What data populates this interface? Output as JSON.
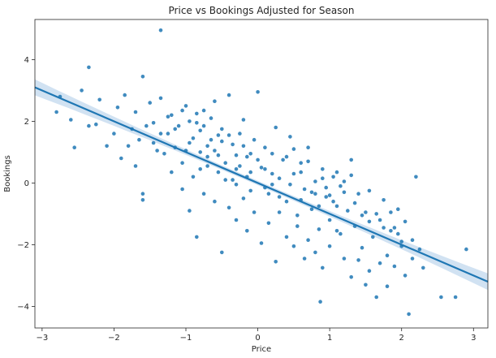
{
  "chart_data": {
    "type": "scatter",
    "title": "Price vs Bookings Adjusted for Season",
    "xlabel": "Price",
    "ylabel": "Bookings",
    "xlim": [
      -3.1,
      3.2
    ],
    "ylim": [
      -4.7,
      5.3
    ],
    "xticks": [
      -3,
      -2,
      -1,
      0,
      1,
      2,
      3
    ],
    "yticks": [
      -4,
      -2,
      0,
      2,
      4
    ],
    "grid": false,
    "colors": {
      "points": "#1f77b4",
      "line": "#1f77b4",
      "band": "#c6dbef"
    },
    "regression": {
      "slope": -1.0,
      "intercept": 0.0,
      "ci_at_edges": 0.27,
      "ci_at_center": 0.07,
      "x_center": 0.0
    },
    "points": [
      [
        -1.35,
        4.95
      ],
      [
        -2.35,
        3.75
      ],
      [
        -1.6,
        3.45
      ],
      [
        -2.45,
        3.0
      ],
      [
        -2.75,
        2.8
      ],
      [
        -2.8,
        2.3
      ],
      [
        -2.6,
        2.05
      ],
      [
        -2.55,
        1.15
      ],
      [
        -2.25,
        1.9
      ],
      [
        -2.2,
        2.7
      ],
      [
        -2.1,
        1.2
      ],
      [
        -2.0,
        1.6
      ],
      [
        -1.95,
        2.45
      ],
      [
        -1.85,
        2.85
      ],
      [
        -1.8,
        1.2
      ],
      [
        -1.75,
        1.75
      ],
      [
        -1.7,
        2.3
      ],
      [
        -1.65,
        1.4
      ],
      [
        -1.6,
        -0.35
      ],
      [
        -1.55,
        1.85
      ],
      [
        -1.5,
        2.6
      ],
      [
        -1.45,
        1.3
      ],
      [
        -1.4,
        1.05
      ],
      [
        -1.35,
        2.75
      ],
      [
        -1.3,
        0.95
      ],
      [
        -1.25,
        1.6
      ],
      [
        -1.2,
        2.2
      ],
      [
        -1.15,
        1.15
      ],
      [
        -1.1,
        1.85
      ],
      [
        -1.05,
        0.65
      ],
      [
        -1.0,
        2.5
      ],
      [
        -0.95,
        1.3
      ],
      [
        -0.9,
        0.2
      ],
      [
        -0.85,
        1.95
      ],
      [
        -0.8,
        1.0
      ],
      [
        -0.75,
        2.35
      ],
      [
        -0.7,
        0.55
      ],
      [
        -0.65,
        1.4
      ],
      [
        -0.6,
        2.65
      ],
      [
        -0.55,
        0.9
      ],
      [
        -0.5,
        1.75
      ],
      [
        -0.45,
        0.1
      ],
      [
        -0.4,
        2.85
      ],
      [
        -0.35,
        1.25
      ],
      [
        -0.3,
        0.45
      ],
      [
        -0.25,
        1.6
      ],
      [
        -0.2,
        2.05
      ],
      [
        -0.15,
        0.85
      ],
      [
        -0.1,
        -0.25
      ],
      [
        -0.05,
        1.4
      ],
      [
        0.0,
        2.95
      ],
      [
        0.05,
        0.5
      ],
      [
        0.1,
        1.15
      ],
      [
        0.15,
        -0.35
      ],
      [
        0.2,
        0.95
      ],
      [
        0.25,
        1.8
      ],
      [
        0.3,
        0.15
      ],
      [
        0.35,
        0.75
      ],
      [
        0.4,
        -0.6
      ],
      [
        0.45,
        1.5
      ],
      [
        0.5,
        0.3
      ],
      [
        0.55,
        -1.05
      ],
      [
        0.6,
        0.65
      ],
      [
        0.65,
        -0.2
      ],
      [
        0.7,
        1.15
      ],
      [
        0.75,
        -0.85
      ],
      [
        0.8,
        0.05
      ],
      [
        0.85,
        -1.5
      ],
      [
        0.9,
        0.45
      ],
      [
        0.95,
        -0.45
      ],
      [
        1.0,
        -1.2
      ],
      [
        1.05,
        0.2
      ],
      [
        1.1,
        -0.75
      ],
      [
        1.15,
        -1.65
      ],
      [
        1.2,
        0.05
      ],
      [
        1.25,
        -0.9
      ],
      [
        1.3,
        0.75
      ],
      [
        1.35,
        -1.4
      ],
      [
        1.4,
        -0.35
      ],
      [
        1.45,
        -2.1
      ],
      [
        1.5,
        -0.95
      ],
      [
        1.55,
        -0.25
      ],
      [
        1.6,
        -1.75
      ],
      [
        1.65,
        -3.7
      ],
      [
        1.7,
        -1.2
      ],
      [
        1.75,
        -0.55
      ],
      [
        1.8,
        -2.35
      ],
      [
        1.85,
        -1.55
      ],
      [
        1.9,
        -2.7
      ],
      [
        1.95,
        -0.85
      ],
      [
        2.0,
        -1.9
      ],
      [
        2.05,
        -3.0
      ],
      [
        2.1,
        -4.25
      ],
      [
        2.15,
        -2.45
      ],
      [
        2.2,
        0.2
      ],
      [
        2.3,
        -2.75
      ],
      [
        2.55,
        -3.7
      ],
      [
        2.75,
        -3.7
      ],
      [
        2.9,
        -2.15
      ],
      [
        0.87,
        -3.85
      ],
      [
        -1.6,
        -0.55
      ],
      [
        -1.7,
        0.55
      ],
      [
        -2.35,
        1.85
      ],
      [
        -1.9,
        0.8
      ],
      [
        -1.2,
        0.35
      ],
      [
        -1.05,
        -0.2
      ],
      [
        -0.95,
        -0.9
      ],
      [
        -0.85,
        -1.75
      ],
      [
        -0.75,
        -0.35
      ],
      [
        -0.6,
        -0.6
      ],
      [
        -0.5,
        -2.25
      ],
      [
        -0.4,
        -0.8
      ],
      [
        -0.3,
        -1.2
      ],
      [
        -0.2,
        -0.5
      ],
      [
        -0.15,
        -1.55
      ],
      [
        -0.05,
        -0.95
      ],
      [
        0.05,
        -1.95
      ],
      [
        0.15,
        -1.3
      ],
      [
        0.25,
        -2.55
      ],
      [
        0.3,
        -0.95
      ],
      [
        0.4,
        -1.75
      ],
      [
        0.5,
        -2.05
      ],
      [
        0.55,
        -1.4
      ],
      [
        0.65,
        -2.45
      ],
      [
        0.7,
        -1.85
      ],
      [
        0.8,
        -2.25
      ],
      [
        0.9,
        -2.75
      ],
      [
        1.0,
        -2.05
      ],
      [
        1.1,
        -1.55
      ],
      [
        1.2,
        -2.45
      ],
      [
        1.3,
        -3.05
      ],
      [
        1.4,
        -2.5
      ],
      [
        1.5,
        -3.3
      ],
      [
        1.55,
        -2.85
      ],
      [
        1.7,
        -2.6
      ],
      [
        1.8,
        -3.35
      ],
      [
        1.9,
        -1.45
      ],
      [
        2.0,
        -2.05
      ],
      [
        -0.3,
        -0.05
      ],
      [
        -0.1,
        0.35
      ],
      [
        0.1,
        -0.15
      ],
      [
        0.2,
        0.3
      ],
      [
        0.3,
        -0.45
      ],
      [
        0.45,
        -0.05
      ],
      [
        0.6,
        -0.55
      ],
      [
        0.75,
        -0.3
      ],
      [
        0.85,
        -0.75
      ],
      [
        0.95,
        -0.15
      ],
      [
        1.05,
        -0.6
      ],
      [
        1.15,
        -0.1
      ],
      [
        -0.8,
        0.45
      ],
      [
        -0.7,
        0.85
      ],
      [
        -0.55,
        0.35
      ],
      [
        -0.45,
        0.65
      ],
      [
        -0.35,
        0.1
      ],
      [
        -0.25,
        0.55
      ],
      [
        -0.15,
        0.2
      ],
      [
        0.0,
        0.75
      ],
      [
        0.1,
        0.45
      ],
      [
        0.2,
        -0.05
      ],
      [
        -1.0,
        1.05
      ],
      [
        -0.9,
        1.45
      ],
      [
        -0.8,
        1.7
      ],
      [
        -0.7,
        1.2
      ],
      [
        -0.6,
        1.05
      ],
      [
        -0.5,
        1.35
      ],
      [
        -0.4,
        1.55
      ],
      [
        -0.3,
        0.9
      ],
      [
        -0.2,
        1.2
      ],
      [
        -0.1,
        0.95
      ],
      [
        -1.45,
        1.95
      ],
      [
        -1.35,
        1.6
      ],
      [
        -1.25,
        2.15
      ],
      [
        -1.15,
        1.75
      ],
      [
        -1.05,
        2.35
      ],
      [
        -0.95,
        2.0
      ],
      [
        -0.85,
        2.25
      ],
      [
        -0.75,
        1.85
      ],
      [
        -0.65,
        2.1
      ],
      [
        -0.55,
        1.55
      ],
      [
        0.4,
        0.85
      ],
      [
        0.5,
        1.1
      ],
      [
        0.6,
        0.35
      ],
      [
        0.7,
        0.7
      ],
      [
        0.8,
        -0.35
      ],
      [
        0.9,
        0.15
      ],
      [
        1.0,
        -0.4
      ],
      [
        1.1,
        0.35
      ],
      [
        1.2,
        -0.3
      ],
      [
        1.3,
        0.25
      ],
      [
        1.35,
        -0.65
      ],
      [
        1.45,
        -1.05
      ],
      [
        1.55,
        -1.25
      ],
      [
        1.65,
        -1.0
      ],
      [
        1.75,
        -1.45
      ],
      [
        1.85,
        -0.95
      ],
      [
        1.95,
        -1.65
      ],
      [
        2.05,
        -1.25
      ],
      [
        2.15,
        -1.85
      ],
      [
        2.25,
        -2.15
      ]
    ]
  }
}
